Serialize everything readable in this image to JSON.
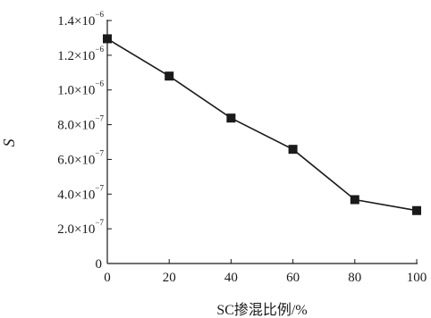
{
  "chart_data": {
    "type": "line",
    "xlabel": "SC掺混比例/%",
    "ylabel": "S",
    "xlim": [
      0,
      100
    ],
    "ylim": [
      0,
      1.4e-06
    ],
    "x_ticks": [
      {
        "value": 0,
        "label": "0"
      },
      {
        "value": 20,
        "label": "20"
      },
      {
        "value": 40,
        "label": "40"
      },
      {
        "value": 60,
        "label": "60"
      },
      {
        "value": 80,
        "label": "80"
      },
      {
        "value": 100,
        "label": "100"
      }
    ],
    "y_ticks": [
      {
        "value": 0,
        "mantissa": "0",
        "exp": ""
      },
      {
        "value": 2e-07,
        "mantissa": "2.0×10",
        "exp": "−7"
      },
      {
        "value": 4e-07,
        "mantissa": "4.0×10",
        "exp": "−7"
      },
      {
        "value": 6e-07,
        "mantissa": "6.0×10",
        "exp": "−7"
      },
      {
        "value": 8e-07,
        "mantissa": "8.0×10",
        "exp": "−7"
      },
      {
        "value": 1e-06,
        "mantissa": "1.0×10",
        "exp": "−6"
      },
      {
        "value": 1.2e-06,
        "mantissa": "1.2×10",
        "exp": "−6"
      },
      {
        "value": 1.4e-06,
        "mantissa": "1.4×10",
        "exp": "−6"
      }
    ],
    "series": [
      {
        "x": [
          0,
          20,
          40,
          60,
          80,
          100
        ],
        "values": [
          1.295e-06,
          1.08e-06,
          8.38e-07,
          6.58e-07,
          3.68e-07,
          3.05e-07
        ],
        "marker": "square",
        "color": "#1a1a1a"
      }
    ],
    "grid": false
  }
}
